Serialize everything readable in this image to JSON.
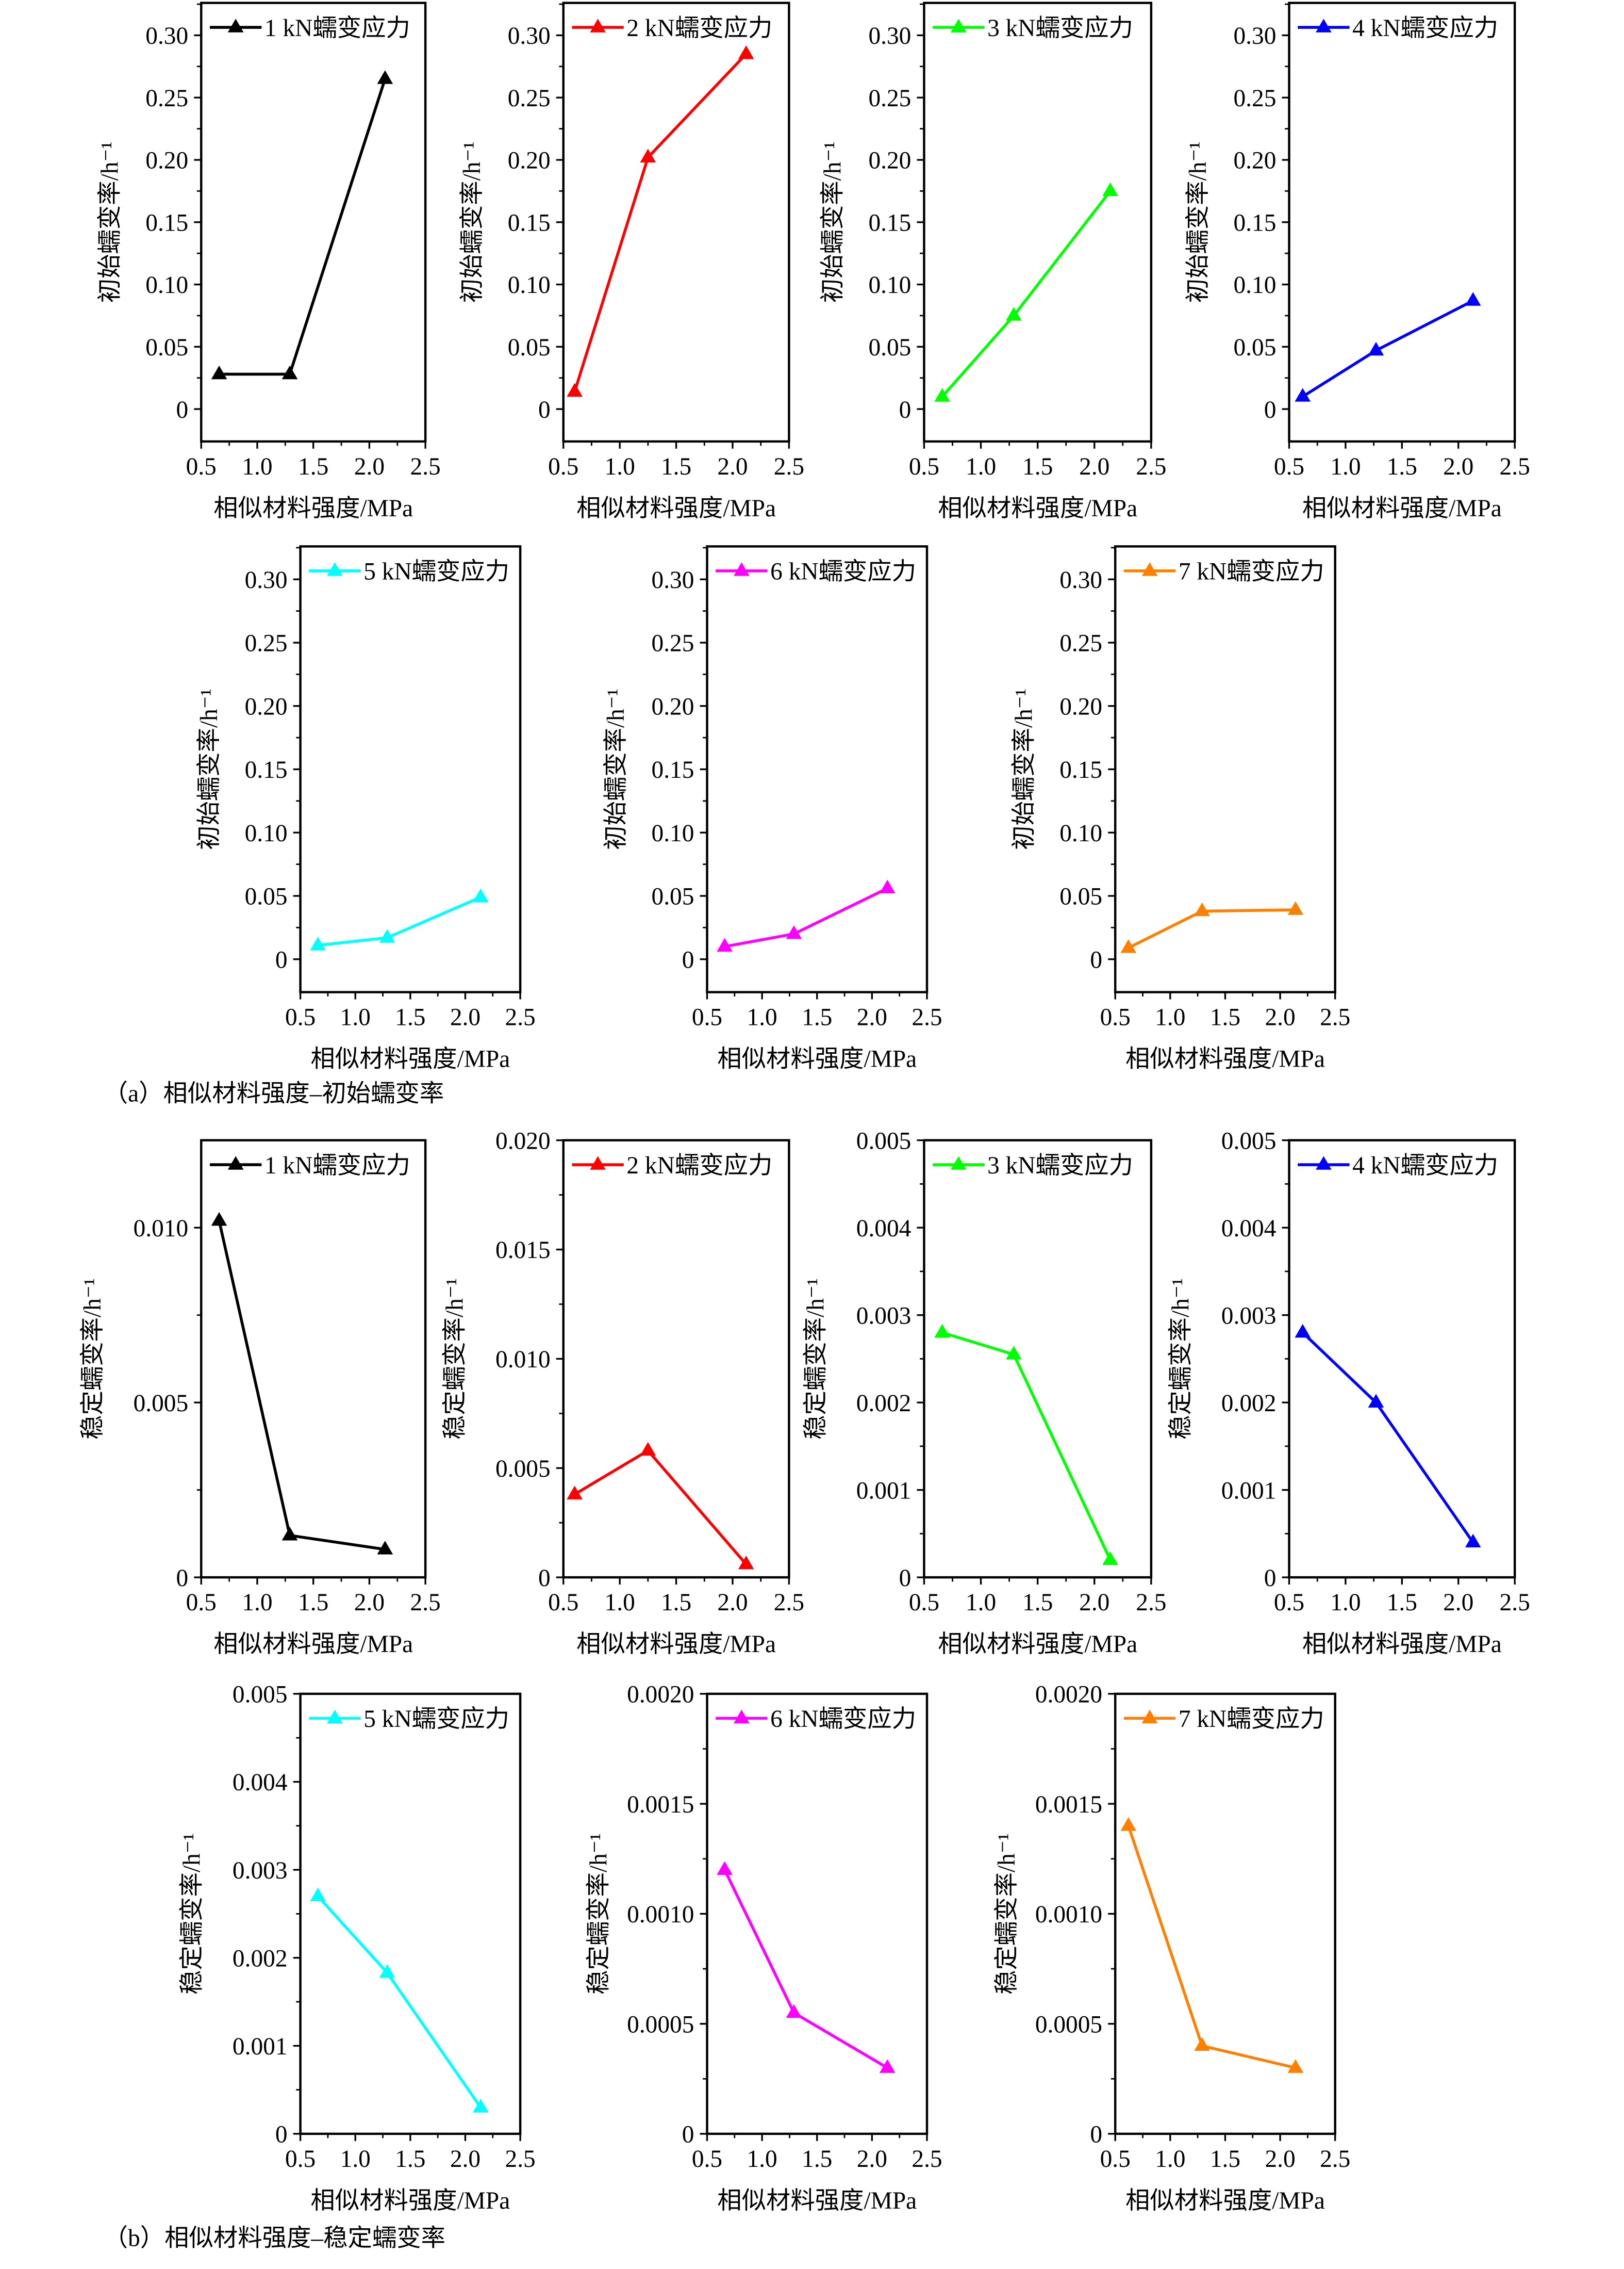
{
  "captions": {
    "a": "（a）相似材料强度–初始蠕变率",
    "b": "（b）相似材料强度–稳定蠕变率"
  },
  "chart_data": [
    {
      "type": "line",
      "group": "a",
      "legend": "1 kN蠕变应力",
      "color": "#000000",
      "xlabel": "相似材料强度/MPa",
      "ylabel": "初始蠕变率/h⁻¹",
      "xlim": [
        0.5,
        2.5
      ],
      "ylim": [
        -0.026,
        0.326
      ],
      "xticks": [
        "0.5",
        "1.0",
        "1.5",
        "2.0",
        "2.5"
      ],
      "yticks": [
        "0",
        "0.05",
        "0.10",
        "0.15",
        "0.20",
        "0.25",
        "0.30"
      ],
      "x": [
        0.66,
        1.29,
        2.14
      ],
      "y": [
        0.028,
        0.028,
        0.265
      ]
    },
    {
      "type": "line",
      "group": "a",
      "legend": "2 kN蠕变应力",
      "color": "#ff0000",
      "xlabel": "相似材料强度/MPa",
      "ylabel": "初始蠕变率/h⁻¹",
      "xlim": [
        0.5,
        2.5
      ],
      "ylim": [
        -0.026,
        0.326
      ],
      "xticks": [
        "0.5",
        "1.0",
        "1.5",
        "2.0",
        "2.5"
      ],
      "yticks": [
        "0",
        "0.05",
        "0.10",
        "0.15",
        "0.20",
        "0.25",
        "0.30"
      ],
      "x": [
        0.6,
        1.25,
        2.12
      ],
      "y": [
        0.014,
        0.202,
        0.285
      ]
    },
    {
      "type": "line",
      "group": "a",
      "legend": "3 kN蠕变应力",
      "color": "#00ff00",
      "xlabel": "相似材料强度/MPa",
      "ylabel": "初始蠕变率/h⁻¹",
      "xlim": [
        0.5,
        2.5
      ],
      "ylim": [
        -0.026,
        0.326
      ],
      "xticks": [
        "0.5",
        "1.0",
        "1.5",
        "2.0",
        "2.5"
      ],
      "yticks": [
        "0",
        "0.05",
        "0.10",
        "0.15",
        "0.20",
        "0.25",
        "0.30"
      ],
      "x": [
        0.66,
        1.29,
        2.14
      ],
      "y": [
        0.01,
        0.075,
        0.175
      ]
    },
    {
      "type": "line",
      "group": "a",
      "legend": "4 kN蠕变应力",
      "color": "#0000ff",
      "xlabel": "相似材料强度/MPa",
      "ylabel": "初始蠕变率/h⁻¹",
      "xlim": [
        0.5,
        2.5
      ],
      "ylim": [
        -0.026,
        0.326
      ],
      "xticks": [
        "0.5",
        "1.0",
        "1.5",
        "2.0",
        "2.5"
      ],
      "yticks": [
        "0",
        "0.05",
        "0.10",
        "0.15",
        "0.20",
        "0.25",
        "0.30"
      ],
      "x": [
        0.62,
        1.27,
        2.13
      ],
      "y": [
        0.01,
        0.047,
        0.087
      ]
    },
    {
      "type": "line",
      "group": "a",
      "legend": "5 kN蠕变应力",
      "color": "#00ffff",
      "xlabel": "相似材料强度/MPa",
      "ylabel": "初始蠕变率/h⁻¹",
      "xlim": [
        0.5,
        2.5
      ],
      "ylim": [
        -0.026,
        0.326
      ],
      "xticks": [
        "0.5",
        "1.0",
        "1.5",
        "2.0",
        "2.5"
      ],
      "yticks": [
        "0",
        "0.05",
        "0.10",
        "0.15",
        "0.20",
        "0.25",
        "0.30"
      ],
      "x": [
        0.66,
        1.29,
        2.14
      ],
      "y": [
        0.011,
        0.017,
        0.049
      ]
    },
    {
      "type": "line",
      "group": "a",
      "legend": "6 kN蠕变应力",
      "color": "#ff00ff",
      "xlabel": "相似材料强度/MPa",
      "ylabel": "初始蠕变率/h⁻¹",
      "xlim": [
        0.5,
        2.5
      ],
      "ylim": [
        -0.026,
        0.326
      ],
      "xticks": [
        "0.5",
        "1.0",
        "1.5",
        "2.0",
        "2.5"
      ],
      "yticks": [
        "0",
        "0.05",
        "0.10",
        "0.15",
        "0.20",
        "0.25",
        "0.30"
      ],
      "x": [
        0.66,
        1.29,
        2.14
      ],
      "y": [
        0.01,
        0.02,
        0.056
      ]
    },
    {
      "type": "line",
      "group": "a",
      "legend": "7 kN蠕变应力",
      "color": "#ff8000",
      "xlabel": "相似材料强度/MPa",
      "ylabel": "初始蠕变率/h⁻¹",
      "xlim": [
        0.5,
        2.5
      ],
      "ylim": [
        -0.026,
        0.326
      ],
      "xticks": [
        "0.5",
        "1.0",
        "1.5",
        "2.0",
        "2.5"
      ],
      "yticks": [
        "0",
        "0.05",
        "0.10",
        "0.15",
        "0.20",
        "0.25",
        "0.30"
      ],
      "x": [
        0.62,
        1.29,
        2.14
      ],
      "y": [
        0.009,
        0.038,
        0.039
      ]
    },
    {
      "type": "line",
      "group": "b",
      "legend": "1 kN蠕变应力",
      "color": "#000000",
      "xlabel": "相似材料强度/MPa",
      "ylabel": "稳定蠕变率/h⁻¹",
      "xlim": [
        0.5,
        2.5
      ],
      "ylim": [
        0,
        0.0125
      ],
      "xticks": [
        "0.5",
        "1.0",
        "1.5",
        "2.0",
        "2.5"
      ],
      "yticks": [
        "0",
        "0.005",
        "0.010"
      ],
      "x": [
        0.66,
        1.29,
        2.14
      ],
      "y": [
        0.0102,
        0.0012,
        0.0008
      ]
    },
    {
      "type": "line",
      "group": "b",
      "legend": "2 kN蠕变应力",
      "color": "#ff0000",
      "xlabel": "相似材料强度/MPa",
      "ylabel": "稳定蠕变率/h⁻¹",
      "xlim": [
        0.5,
        2.5
      ],
      "ylim": [
        0,
        0.02
      ],
      "xticks": [
        "0.5",
        "1.0",
        "1.5",
        "2.0",
        "2.5"
      ],
      "yticks": [
        "0",
        "0.005",
        "0.010",
        "0.015",
        "0.020"
      ],
      "x": [
        0.6,
        1.25,
        2.12
      ],
      "y": [
        0.0038,
        0.0058,
        0.0006
      ]
    },
    {
      "type": "line",
      "group": "b",
      "legend": "3 kN蠕变应力",
      "color": "#00ff00",
      "xlabel": "相似材料强度/MPa",
      "ylabel": "稳定蠕变率/h⁻¹",
      "xlim": [
        0.5,
        2.5
      ],
      "ylim": [
        0,
        0.005
      ],
      "xticks": [
        "0.5",
        "1.0",
        "1.5",
        "2.0",
        "2.5"
      ],
      "yticks": [
        "0",
        "0.001",
        "0.002",
        "0.003",
        "0.004",
        "0.005"
      ],
      "x": [
        0.66,
        1.29,
        2.14
      ],
      "y": [
        0.0028,
        0.00255,
        0.0002
      ]
    },
    {
      "type": "line",
      "group": "b",
      "legend": "4 kN蠕变应力",
      "color": "#0000ff",
      "xlabel": "相似材料强度/MPa",
      "ylabel": "稳定蠕变率/h⁻¹",
      "xlim": [
        0.5,
        2.5
      ],
      "ylim": [
        0,
        0.005
      ],
      "xticks": [
        "0.5",
        "1.0",
        "1.5",
        "2.0",
        "2.5"
      ],
      "yticks": [
        "0",
        "0.001",
        "0.002",
        "0.003",
        "0.004",
        "0.005"
      ],
      "x": [
        0.62,
        1.27,
        2.13
      ],
      "y": [
        0.0028,
        0.002,
        0.0004
      ]
    },
    {
      "type": "line",
      "group": "b",
      "legend": "5 kN蠕变应力",
      "color": "#00ffff",
      "xlabel": "相似材料强度/MPa",
      "ylabel": "稳定蠕变率/h⁻¹",
      "xlim": [
        0.5,
        2.5
      ],
      "ylim": [
        0,
        0.005
      ],
      "xticks": [
        "0.5",
        "1.0",
        "1.5",
        "2.0",
        "2.5"
      ],
      "yticks": [
        "0",
        "0.001",
        "0.002",
        "0.003",
        "0.004",
        "0.005"
      ],
      "x": [
        0.66,
        1.29,
        2.14
      ],
      "y": [
        0.0027,
        0.00183,
        0.0003
      ]
    },
    {
      "type": "line",
      "group": "b",
      "legend": "6 kN蠕变应力",
      "color": "#ff00ff",
      "xlabel": "相似材料强度/MPa",
      "ylabel": "稳定蠕变率/h⁻¹",
      "xlim": [
        0.5,
        2.5
      ],
      "ylim": [
        0,
        0.002
      ],
      "xticks": [
        "0.5",
        "1.0",
        "1.5",
        "2.0",
        "2.5"
      ],
      "yticks": [
        "0",
        "0.0005",
        "0.0010",
        "0.0015",
        "0.0020"
      ],
      "x": [
        0.66,
        1.29,
        2.14
      ],
      "y": [
        0.0012,
        0.00055,
        0.0003
      ]
    },
    {
      "type": "line",
      "group": "b",
      "legend": "7 kN蠕变应力",
      "color": "#ff8000",
      "xlabel": "相似材料强度/MPa",
      "ylabel": "稳定蠕变率/h⁻¹",
      "xlim": [
        0.5,
        2.5
      ],
      "ylim": [
        0,
        0.002
      ],
      "xticks": [
        "0.5",
        "1.0",
        "1.5",
        "2.0",
        "2.5"
      ],
      "yticks": [
        "0",
        "0.0005",
        "0.0010",
        "0.0015",
        "0.0020"
      ],
      "x": [
        0.62,
        1.29,
        2.14
      ],
      "y": [
        0.0014,
        0.0004,
        0.0003
      ]
    }
  ]
}
